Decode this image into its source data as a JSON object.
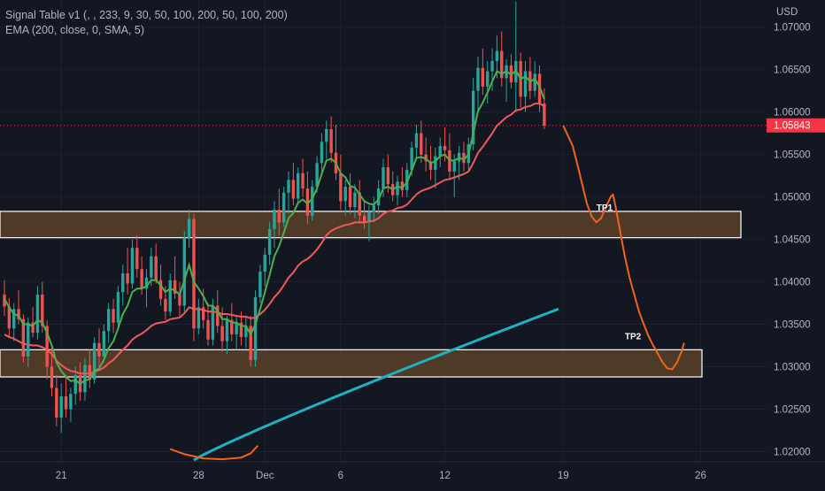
{
  "indicators": {
    "line1": "Signal Table v1 (, , 233, 9, 30, 50, 100, 200, 50, 100, 200)",
    "line2": "EMA (200, close, 0, SMA, 5)"
  },
  "chart_data": {
    "type": "candlestick",
    "currency_label": "USD",
    "ylim": [
      1.0188,
      1.0732
    ],
    "y_ticks": [
      "1.07000",
      "1.06500",
      "1.06000",
      "1.05500",
      "1.05000",
      "1.04500",
      "1.04000",
      "1.03500",
      "1.03000",
      "1.02500",
      "1.02000"
    ],
    "x_ticks": [
      "21",
      "28",
      "Dec",
      "6",
      "12",
      "19",
      "26"
    ],
    "last_price": "1.05843",
    "colors": {
      "background": "#131722",
      "up": "#26a69a",
      "down": "#ef5350",
      "ema_fast": "#4caf50",
      "ema_slow": "#f05a5a",
      "ema_200": "#1eb1c4",
      "projection": "#f0641e",
      "zone_fill": "#5a4129",
      "zone_border": "#ffffff",
      "price_label": "#f23645"
    },
    "zones": [
      {
        "from": 1.0452,
        "to": 1.0483
      },
      {
        "from": 1.0288,
        "to": 1.032
      }
    ],
    "targets": [
      {
        "label": "TP1",
        "price": 1.0482
      },
      {
        "label": "TP2",
        "price": 1.033
      }
    ],
    "candles_ohlc": [
      [
        1.0385,
        1.0402,
        1.036,
        1.0371
      ],
      [
        1.0371,
        1.0381,
        1.0335,
        1.0345
      ],
      [
        1.0345,
        1.0375,
        1.033,
        1.0368
      ],
      [
        1.0368,
        1.039,
        1.035,
        1.0356
      ],
      [
        1.0356,
        1.0362,
        1.0305,
        1.0312
      ],
      [
        1.0312,
        1.0358,
        1.03,
        1.0352
      ],
      [
        1.0352,
        1.037,
        1.0335,
        1.034
      ],
      [
        1.034,
        1.0395,
        1.0332,
        1.0385
      ],
      [
        1.0385,
        1.04,
        1.034,
        1.0348
      ],
      [
        1.0348,
        1.0355,
        1.0285,
        1.03
      ],
      [
        1.03,
        1.0325,
        1.0265,
        1.0275
      ],
      [
        1.0275,
        1.029,
        1.023,
        1.024
      ],
      [
        1.024,
        1.028,
        1.0222,
        1.0265
      ],
      [
        1.0265,
        1.029,
        1.024,
        1.025
      ],
      [
        1.025,
        1.0275,
        1.0235,
        1.0268
      ],
      [
        1.0268,
        1.03,
        1.0255,
        1.029
      ],
      [
        1.029,
        1.0305,
        1.026,
        1.027
      ],
      [
        1.027,
        1.031,
        1.026,
        1.0302
      ],
      [
        1.0302,
        1.032,
        1.0275,
        1.0285
      ],
      [
        1.0285,
        1.0335,
        1.028,
        1.0328
      ],
      [
        1.0328,
        1.0345,
        1.03,
        1.0312
      ],
      [
        1.0312,
        1.035,
        1.0305,
        1.0342
      ],
      [
        1.0342,
        1.0375,
        1.0328,
        1.0368
      ],
      [
        1.0368,
        1.038,
        1.034,
        1.0352
      ],
      [
        1.0352,
        1.0395,
        1.0345,
        1.0388
      ],
      [
        1.0388,
        1.042,
        1.0372,
        1.041
      ],
      [
        1.041,
        1.044,
        1.0385,
        1.0398
      ],
      [
        1.0398,
        1.045,
        1.0392,
        1.044
      ],
      [
        1.044,
        1.0455,
        1.0405,
        1.0415
      ],
      [
        1.0415,
        1.043,
        1.0385,
        1.0392
      ],
      [
        1.0392,
        1.0415,
        1.037,
        1.0405
      ],
      [
        1.0405,
        1.044,
        1.0395,
        1.043
      ],
      [
        1.043,
        1.0445,
        1.0398,
        1.0402
      ],
      [
        1.0402,
        1.042,
        1.0372,
        1.038
      ],
      [
        1.038,
        1.0395,
        1.0355,
        1.0365
      ],
      [
        1.0365,
        1.041,
        1.036,
        1.0402
      ],
      [
        1.0402,
        1.043,
        1.038,
        1.0386
      ],
      [
        1.0386,
        1.04,
        1.036,
        1.0372
      ],
      [
        1.0372,
        1.046,
        1.0365,
        1.0452
      ],
      [
        1.0452,
        1.0485,
        1.044,
        1.0474
      ],
      [
        1.0474,
        1.048,
        1.033,
        1.0345
      ],
      [
        1.0345,
        1.038,
        1.0338,
        1.037
      ],
      [
        1.037,
        1.0392,
        1.0345,
        1.0355
      ],
      [
        1.0355,
        1.0375,
        1.0325,
        1.0332
      ],
      [
        1.0332,
        1.038,
        1.0325,
        1.0372
      ],
      [
        1.0372,
        1.039,
        1.034,
        1.0348
      ],
      [
        1.0348,
        1.037,
        1.0318,
        1.033
      ],
      [
        1.033,
        1.036,
        1.0315,
        1.0355
      ],
      [
        1.0355,
        1.0375,
        1.033,
        1.0338
      ],
      [
        1.0338,
        1.036,
        1.032,
        1.0352
      ],
      [
        1.0352,
        1.0365,
        1.0325,
        1.0335
      ],
      [
        1.0335,
        1.0358,
        1.0322,
        1.0348
      ],
      [
        1.0348,
        1.036,
        1.03,
        1.0308
      ],
      [
        1.0308,
        1.039,
        1.03,
        1.0382
      ],
      [
        1.0382,
        1.042,
        1.0375,
        1.0412
      ],
      [
        1.0412,
        1.044,
        1.0395,
        1.0432
      ],
      [
        1.0432,
        1.047,
        1.042,
        1.0462
      ],
      [
        1.0462,
        1.0495,
        1.044,
        1.0485
      ],
      [
        1.0485,
        1.051,
        1.0455,
        1.047
      ],
      [
        1.047,
        1.0512,
        1.0465,
        1.0505
      ],
      [
        1.0505,
        1.053,
        1.048,
        1.052
      ],
      [
        1.052,
        1.054,
        1.049,
        1.0498
      ],
      [
        1.0498,
        1.0535,
        1.0492,
        1.0528
      ],
      [
        1.0528,
        1.0545,
        1.05,
        1.051
      ],
      [
        1.051,
        1.053,
        1.0468,
        1.0478
      ],
      [
        1.0478,
        1.052,
        1.0472,
        1.0512
      ],
      [
        1.0512,
        1.0548,
        1.0505,
        1.054
      ],
      [
        1.054,
        1.0575,
        1.0528,
        1.0565
      ],
      [
        1.0565,
        1.059,
        1.0545,
        1.058
      ],
      [
        1.058,
        1.0595,
        1.054,
        1.0552
      ],
      [
        1.0552,
        1.0585,
        1.052,
        1.0528
      ],
      [
        1.0528,
        1.055,
        1.0485,
        1.0495
      ],
      [
        1.0495,
        1.052,
        1.0478,
        1.0512
      ],
      [
        1.0512,
        1.0528,
        1.048,
        1.0488
      ],
      [
        1.0488,
        1.0515,
        1.0475,
        1.0505
      ],
      [
        1.0505,
        1.052,
        1.047,
        1.0478
      ],
      [
        1.0478,
        1.0495,
        1.0462,
        1.047
      ],
      [
        1.047,
        1.049,
        1.0448,
        1.0482
      ],
      [
        1.0482,
        1.05,
        1.047,
        1.049
      ],
      [
        1.049,
        1.052,
        1.048,
        1.051
      ],
      [
        1.051,
        1.0545,
        1.05,
        1.0535
      ],
      [
        1.0535,
        1.055,
        1.0505,
        1.0515
      ],
      [
        1.0515,
        1.053,
        1.0495,
        1.0502
      ],
      [
        1.0502,
        1.0525,
        1.049,
        1.0518
      ],
      [
        1.0518,
        1.0535,
        1.05,
        1.0508
      ],
      [
        1.0508,
        1.054,
        1.05,
        1.0532
      ],
      [
        1.0532,
        1.0565,
        1.0525,
        1.0558
      ],
      [
        1.0558,
        1.0585,
        1.0545,
        1.0575
      ],
      [
        1.0575,
        1.059,
        1.054,
        1.055
      ],
      [
        1.055,
        1.057,
        1.053,
        1.0542
      ],
      [
        1.0542,
        1.056,
        1.052,
        1.0532
      ],
      [
        1.0532,
        1.0558,
        1.051,
        1.0548
      ],
      [
        1.0548,
        1.057,
        1.0535,
        1.056
      ],
      [
        1.056,
        1.0582,
        1.0542,
        1.0555
      ],
      [
        1.0555,
        1.0575,
        1.0522,
        1.053
      ],
      [
        1.053,
        1.055,
        1.05,
        1.0542
      ],
      [
        1.0542,
        1.056,
        1.052,
        1.0552
      ],
      [
        1.0552,
        1.0565,
        1.053,
        1.054
      ],
      [
        1.054,
        1.057,
        1.053,
        1.0562
      ],
      [
        1.0562,
        1.064,
        1.0555,
        1.0625
      ],
      [
        1.0625,
        1.0665,
        1.06,
        1.0652
      ],
      [
        1.0652,
        1.0675,
        1.062,
        1.063
      ],
      [
        1.063,
        1.066,
        1.061,
        1.0648
      ],
      [
        1.0648,
        1.0675,
        1.0625,
        1.066
      ],
      [
        1.066,
        1.069,
        1.064,
        1.0672
      ],
      [
        1.0672,
        1.0695,
        1.063,
        1.064
      ],
      [
        1.064,
        1.0662,
        1.0612,
        1.0655
      ],
      [
        1.0655,
        1.0668,
        1.0628,
        1.0635
      ],
      [
        1.0635,
        1.073,
        1.06,
        1.066
      ],
      [
        1.066,
        1.067,
        1.0605,
        1.0618
      ],
      [
        1.0618,
        1.066,
        1.06,
        1.0648
      ],
      [
        1.0648,
        1.0665,
        1.0615,
        1.0625
      ],
      [
        1.0625,
        1.066,
        1.0618,
        1.0645
      ],
      [
        1.0645,
        1.0655,
        1.06,
        1.061
      ],
      [
        1.061,
        1.0628,
        1.058,
        1.0584
      ]
    ],
    "ema_fast": [
      1.038,
      1.037,
      1.0362,
      1.036,
      1.035,
      1.035,
      1.0348,
      1.0355,
      1.0352,
      1.034,
      1.0325,
      1.0305,
      1.0295,
      1.0288,
      1.0283,
      1.0284,
      1.028,
      1.0284,
      1.0285,
      1.0295,
      1.0298,
      1.0308,
      1.0322,
      1.033,
      1.0345,
      1.0362,
      1.0372,
      1.0388,
      1.0392,
      1.0392,
      1.0395,
      1.0402,
      1.0402,
      1.0396,
      1.0388,
      1.0392,
      1.039,
      1.0385,
      1.0402,
      1.042,
      1.04,
      1.0392,
      1.0383,
      1.0372,
      1.0372,
      1.0366,
      1.0356,
      1.0356,
      1.0352,
      1.0352,
      1.0348,
      1.0348,
      1.0338,
      1.035,
      1.0368,
      1.0388,
      1.0408,
      1.043,
      1.0442,
      1.0458,
      1.0475,
      1.0481,
      1.0493,
      1.0497,
      1.0492,
      1.0498,
      1.051,
      1.0527,
      1.0543,
      1.0545,
      1.054,
      1.0528,
      1.0523,
      1.0513,
      1.0511,
      1.0503,
      1.0495,
      1.0492,
      1.0491,
      1.0497,
      1.051,
      1.0512,
      1.0509,
      1.0512,
      1.0511,
      1.0517,
      1.0531,
      1.0546,
      1.0547,
      1.0545,
      1.054,
      1.0542,
      1.0548,
      1.055,
      1.0543,
      1.0543,
      1.0546,
      1.0544,
      1.055,
      1.0575,
      1.0601,
      1.0611,
      1.0623,
      1.0636,
      1.0648,
      1.0645,
      1.0648,
      1.0644,
      1.0649,
      1.0639,
      1.0642,
      1.0636,
      1.0639,
      1.063,
      1.0615
    ],
    "ema_slow": [
      1.0338,
      1.0335,
      1.0333,
      1.033,
      1.0327,
      1.0326,
      1.0325,
      1.0325,
      1.0323,
      1.032,
      1.0315,
      1.0307,
      1.0302,
      1.0298,
      1.0295,
      1.0294,
      1.0292,
      1.0292,
      1.0292,
      1.0294,
      1.0296,
      1.0299,
      1.0304,
      1.0308,
      1.0314,
      1.032,
      1.0325,
      1.0332,
      1.0336,
      1.0339,
      1.0343,
      1.0348,
      1.0351,
      1.0352,
      1.0353,
      1.0356,
      1.0357,
      1.0358,
      1.0363,
      1.037,
      1.0368,
      1.0368,
      1.0367,
      1.0365,
      1.0365,
      1.0364,
      1.0362,
      1.0362,
      1.0361,
      1.036,
      1.0359,
      1.0359,
      1.0357,
      1.0358,
      1.0362,
      1.0367,
      1.0374,
      1.0382,
      1.0388,
      1.0396,
      1.0405,
      1.0411,
      1.0419,
      1.0424,
      1.0427,
      1.0432,
      1.0438,
      1.0446,
      1.0455,
      1.046,
      1.0463,
      1.0465,
      1.0467,
      1.0468,
      1.047,
      1.047,
      1.047,
      1.0471,
      1.0472,
      1.0475,
      1.048,
      1.0483,
      1.0484,
      1.0487,
      1.0488,
      1.0491,
      1.0497,
      1.0503,
      1.0507,
      1.0509,
      1.0511,
      1.0514,
      1.0517,
      1.052,
      1.0521,
      1.0523,
      1.0525,
      1.0527,
      1.053,
      1.054,
      1.0552,
      1.0559,
      1.0567,
      1.0575,
      1.0584,
      1.0589,
      1.0594,
      1.0597,
      1.0602,
      1.0603,
      1.0606,
      1.0607,
      1.061,
      1.061,
      1.0607
    ],
    "ema_200": {
      "from_day": 40,
      "start": 1.019,
      "to_day": 117,
      "end": 1.0368
    },
    "projection_points": [
      [
        118,
        1.0584
      ],
      [
        120,
        1.056
      ],
      [
        121,
        1.0538
      ],
      [
        122,
        1.0515
      ],
      [
        123,
        1.0492
      ],
      [
        124,
        1.0477
      ],
      [
        125,
        1.047
      ],
      [
        126,
        1.0475
      ],
      [
        127,
        1.0488
      ],
      [
        128,
        1.05
      ],
      [
        128.5,
        1.0503
      ],
      [
        129,
        1.049
      ],
      [
        130,
        1.046
      ],
      [
        131,
        1.043
      ],
      [
        132,
        1.0405
      ],
      [
        133,
        1.0385
      ],
      [
        134,
        1.0365
      ],
      [
        135,
        1.035
      ],
      [
        136,
        1.0336
      ],
      [
        137,
        1.0325
      ],
      [
        138,
        1.0315
      ],
      [
        139,
        1.0305
      ],
      [
        140,
        1.0298
      ],
      [
        141,
        1.0297
      ],
      [
        142,
        1.0305
      ],
      [
        143,
        1.0318
      ],
      [
        143.5,
        1.0328
      ]
    ],
    "lower_projection_points": [
      [
        35,
        1.0203
      ],
      [
        38,
        1.0197
      ],
      [
        42,
        1.0192
      ],
      [
        46,
        1.0191
      ],
      [
        50,
        1.0193
      ],
      [
        52,
        1.0198
      ],
      [
        53.5,
        1.0207
      ]
    ]
  }
}
